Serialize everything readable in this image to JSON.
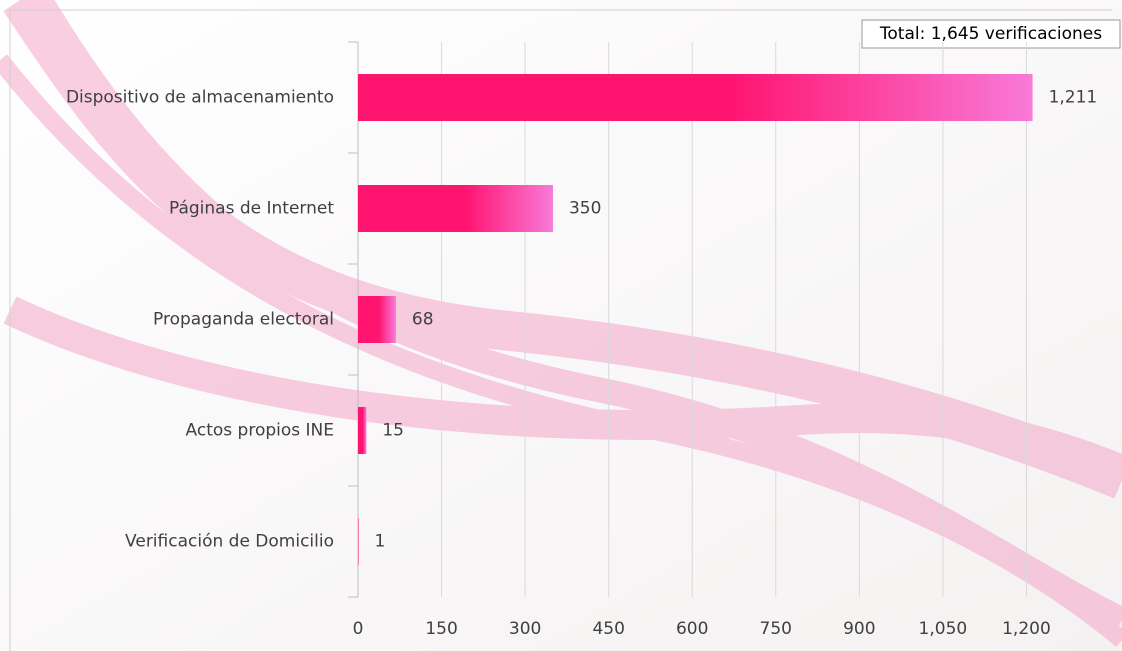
{
  "chart_data": {
    "type": "bar",
    "orientation": "horizontal",
    "annotation": "Total: 1,645 verificaciones",
    "categories": [
      "Dispositivo de almacenamiento",
      "Páginas de Internet",
      "Propaganda electoral",
      "Actos propios INE",
      "Verificación de Domicilio"
    ],
    "values": [
      1211,
      350,
      68,
      15,
      1
    ],
    "value_labels": [
      "1,211",
      "350",
      "68",
      "15",
      "1"
    ],
    "gradient": [
      "#ff1470",
      "#f87ad8"
    ],
    "xlim": [
      0,
      1350
    ],
    "xticks": [
      0,
      150,
      300,
      450,
      600,
      750,
      900,
      {
        "value": 1050,
        "label": "1,050"
      },
      {
        "value": 1200,
        "label": "1,200"
      }
    ],
    "grid": true
  }
}
